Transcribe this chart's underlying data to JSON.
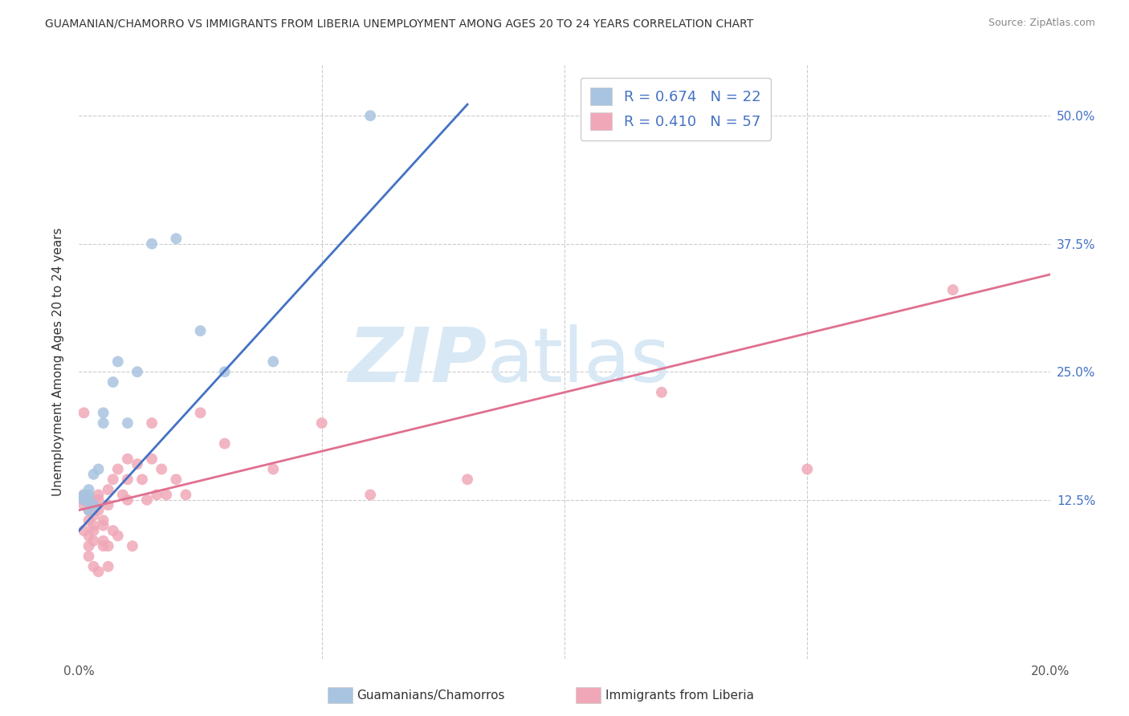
{
  "title": "GUAMANIAN/CHAMORRO VS IMMIGRANTS FROM LIBERIA UNEMPLOYMENT AMONG AGES 20 TO 24 YEARS CORRELATION CHART",
  "source": "Source: ZipAtlas.com",
  "ylabel": "Unemployment Among Ages 20 to 24 years",
  "legend_label_blue": "Guamanians/Chamorros",
  "legend_label_pink": "Immigrants from Liberia",
  "R_blue": 0.674,
  "N_blue": 22,
  "R_pink": 0.41,
  "N_pink": 57,
  "color_blue": "#a8c4e0",
  "color_pink": "#f0a8b8",
  "line_color_blue": "#4472c4",
  "line_color_pink": "#e07090",
  "background_color": "#ffffff",
  "watermark_color": "#d8e8f5",
  "xlim": [
    0.0,
    0.2
  ],
  "ylim": [
    -0.03,
    0.55
  ],
  "ytick_vals": [
    0.0,
    0.125,
    0.25,
    0.375,
    0.5
  ],
  "ytick_labels": [
    "",
    "12.5%",
    "25.0%",
    "37.5%",
    "50.0%"
  ],
  "xtick_vals": [
    0.0,
    0.05,
    0.1,
    0.15,
    0.2
  ],
  "xtick_labels": [
    "0.0%",
    "",
    "",
    "",
    "20.0%"
  ],
  "blue_x": [
    0.001,
    0.001,
    0.001,
    0.002,
    0.002,
    0.002,
    0.002,
    0.003,
    0.003,
    0.004,
    0.005,
    0.005,
    0.007,
    0.008,
    0.01,
    0.012,
    0.015,
    0.02,
    0.025,
    0.03,
    0.04,
    0.06
  ],
  "blue_y": [
    0.125,
    0.128,
    0.13,
    0.125,
    0.13,
    0.135,
    0.115,
    0.15,
    0.12,
    0.155,
    0.2,
    0.21,
    0.24,
    0.26,
    0.2,
    0.25,
    0.375,
    0.38,
    0.29,
    0.25,
    0.26,
    0.5
  ],
  "pink_x": [
    0.001,
    0.001,
    0.001,
    0.001,
    0.001,
    0.002,
    0.002,
    0.002,
    0.002,
    0.002,
    0.002,
    0.003,
    0.003,
    0.003,
    0.003,
    0.003,
    0.003,
    0.004,
    0.004,
    0.004,
    0.004,
    0.005,
    0.005,
    0.005,
    0.005,
    0.006,
    0.006,
    0.006,
    0.006,
    0.007,
    0.007,
    0.008,
    0.008,
    0.009,
    0.01,
    0.01,
    0.01,
    0.011,
    0.012,
    0.013,
    0.014,
    0.015,
    0.015,
    0.016,
    0.017,
    0.018,
    0.02,
    0.022,
    0.025,
    0.03,
    0.04,
    0.05,
    0.06,
    0.08,
    0.12,
    0.15,
    0.18
  ],
  "pink_y": [
    0.125,
    0.13,
    0.12,
    0.095,
    0.21,
    0.125,
    0.115,
    0.105,
    0.09,
    0.08,
    0.07,
    0.125,
    0.11,
    0.1,
    0.085,
    0.095,
    0.06,
    0.125,
    0.13,
    0.115,
    0.055,
    0.105,
    0.1,
    0.085,
    0.08,
    0.135,
    0.12,
    0.08,
    0.06,
    0.145,
    0.095,
    0.155,
    0.09,
    0.13,
    0.165,
    0.145,
    0.125,
    0.08,
    0.16,
    0.145,
    0.125,
    0.2,
    0.165,
    0.13,
    0.155,
    0.13,
    0.145,
    0.13,
    0.21,
    0.18,
    0.155,
    0.2,
    0.13,
    0.145,
    0.23,
    0.155,
    0.33
  ],
  "blue_line_x": [
    0.0,
    0.08
  ],
  "blue_line_y_start": 0.095,
  "blue_line_slope": 5.2,
  "pink_line_x": [
    0.0,
    0.2
  ],
  "pink_line_y_start": 0.115,
  "pink_line_slope": 1.15
}
